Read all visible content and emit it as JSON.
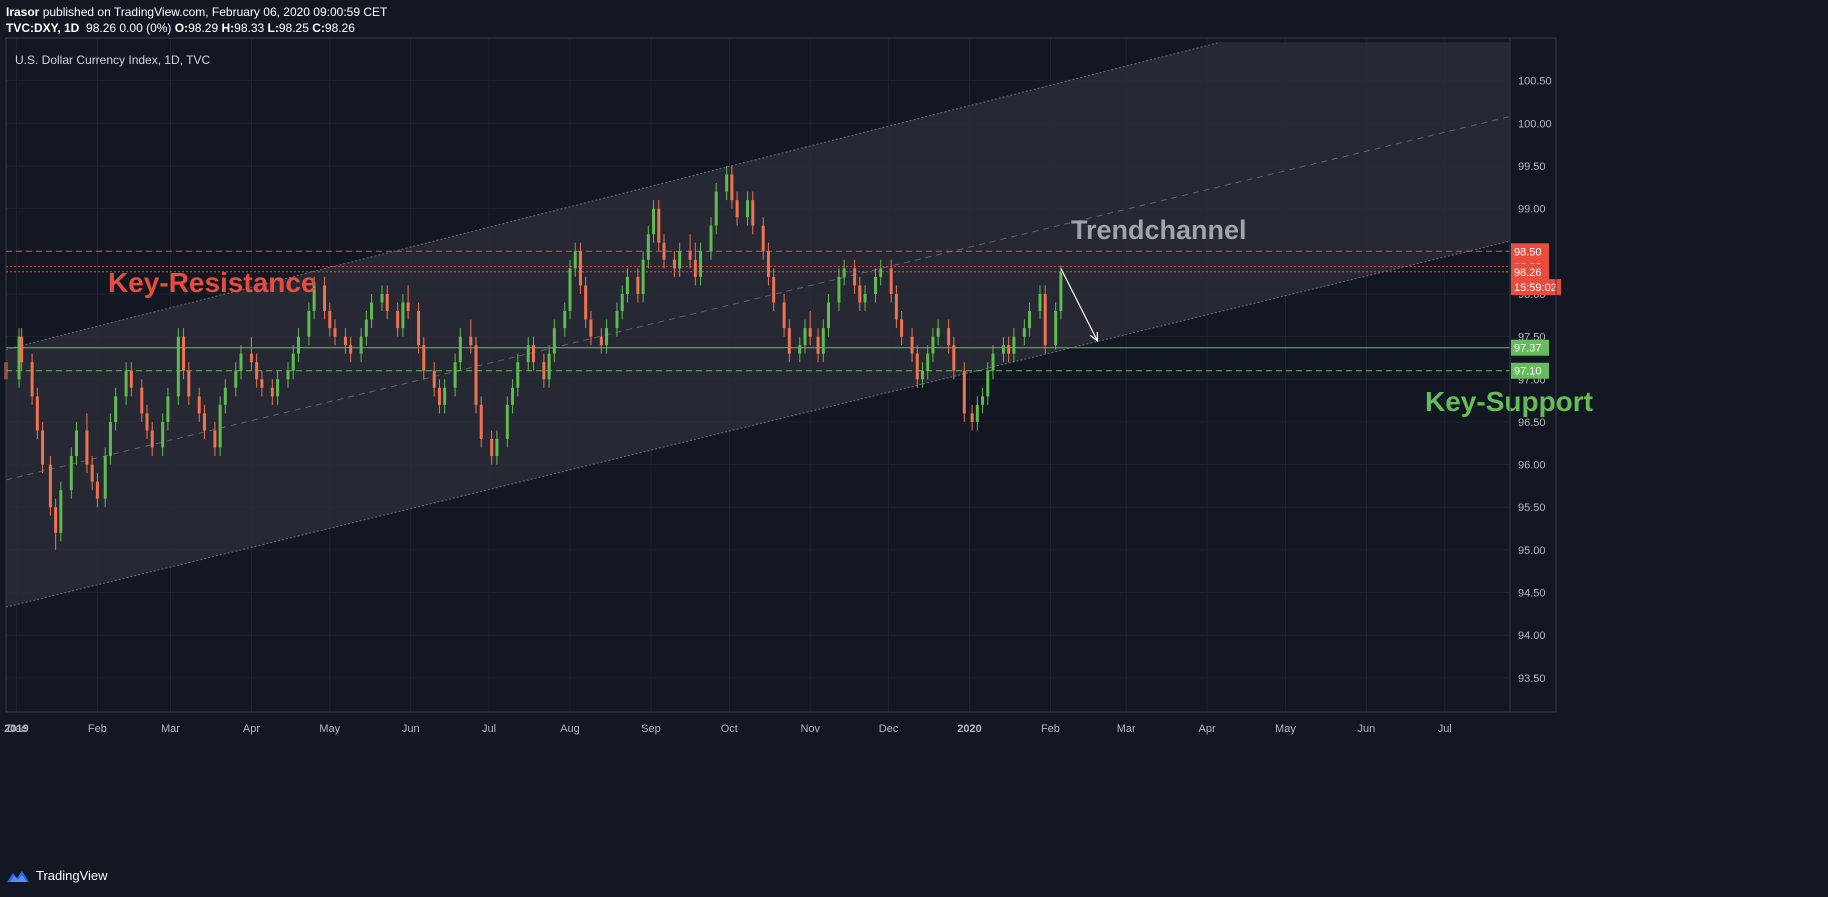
{
  "header": {
    "user": "Irasor",
    "published_text": " published on TradingView.com, February 06, 2020 09:00:59 CET",
    "symbol": "TVC:DXY, 1D",
    "price_info": "98.26 0.00 (0%)",
    "o_label": "O:",
    "o_value": "98.29",
    "h_label": "H:",
    "h_value": "98.33",
    "l_label": "L:",
    "l_value": "98.25",
    "c_label": "C:",
    "c_value": "98.26"
  },
  "footer": {
    "brand": "TradingView"
  },
  "colors": {
    "background": "#131722",
    "up": "#5fbb4e",
    "down": "#ef7350",
    "resistance": "#e84c3d",
    "support": "#66bb5a",
    "channel_fill": "#2a2d36",
    "text": "#d1d4dc"
  },
  "chart_data": {
    "type": "candlestick",
    "title": "U.S. Dollar Currency Index, 1D, TVC",
    "x_ticks": [
      "Dec",
      "2019",
      "Feb",
      "Mar",
      "Apr",
      "May",
      "Jun",
      "Jul",
      "Aug",
      "Sep",
      "Oct",
      "Nov",
      "Dec",
      "2020",
      "Feb",
      "Mar",
      "Apr",
      "May",
      "Jun",
      "Jul"
    ],
    "y_ticks": [
      "93.50",
      "94.00",
      "94.50",
      "95.00",
      "95.50",
      "96.00",
      "96.50",
      "97.00",
      "97.50",
      "98.00",
      "98.50",
      "99.00",
      "99.50",
      "100.00",
      "100.50"
    ],
    "ylim": [
      93.1,
      101.0
    ],
    "xlim": [
      "2018-12-28",
      "2020-07-26"
    ],
    "price_tags": [
      {
        "label": "98.50",
        "value": 98.5,
        "color": "#e84c3d"
      },
      {
        "label": "98.32",
        "value": 98.32,
        "color": "#e84c3d"
      },
      {
        "label": "98.26",
        "value": 98.26,
        "color": "#e84c3d"
      },
      {
        "label": "15:59:02",
        "value": 98.08,
        "color": "#e84c3d"
      },
      {
        "label": "97.37",
        "value": 97.37,
        "color": "#66bb5a"
      },
      {
        "label": "97.10",
        "value": 97.1,
        "color": "#66bb5a"
      }
    ],
    "annotations": [
      {
        "text": "Key-Resistance",
        "color": "#e84c3d"
      },
      {
        "text": "Trendchannel",
        "color": "#a0a3ab"
      },
      {
        "text": "Key-Support",
        "color": "#66bb5a"
      }
    ],
    "hlines": [
      {
        "value": 98.5,
        "style": "dashed",
        "color": "#e84c3d"
      },
      {
        "value": 98.32,
        "style": "dotted",
        "color": "#e84c3d"
      },
      {
        "value": 98.26,
        "style": "dotted",
        "color": "#e84c3d"
      },
      {
        "value": 97.37,
        "style": "solid",
        "color": "#66bb5a"
      },
      {
        "value": 97.1,
        "style": "dashed",
        "color": "#66bb5a"
      }
    ],
    "channel": {
      "upper": [
        [
          "2018-12-28",
          97.35
        ],
        [
          "2020-04-06",
          100.95
        ]
      ],
      "lower": [
        [
          "2018-12-28",
          94.33
        ],
        [
          "2020-07-26",
          98.62
        ]
      ],
      "median": [
        [
          "2018-12-28",
          95.82
        ],
        [
          "2020-07-26",
          100.08
        ]
      ]
    },
    "arrow": [
      [
        "2020-02-05",
        98.3
      ],
      [
        "2020-02-19",
        97.45
      ]
    ],
    "candles": [
      [
        "2018-12-28",
        97.2,
        97.3,
        96.9,
        97.0
      ],
      [
        "2019-01-02",
        97.0,
        97.6,
        96.9,
        97.5
      ],
      [
        "2019-01-03",
        97.5,
        97.6,
        97.1,
        97.2
      ],
      [
        "2019-01-07",
        97.2,
        97.3,
        96.7,
        96.8
      ],
      [
        "2019-01-09",
        96.8,
        96.9,
        96.3,
        96.4
      ],
      [
        "2019-01-11",
        96.4,
        96.5,
        95.9,
        96.0
      ],
      [
        "2019-01-14",
        96.0,
        96.1,
        95.4,
        95.5
      ],
      [
        "2019-01-16",
        95.5,
        95.6,
        95.0,
        95.2
      ],
      [
        "2019-01-18",
        95.2,
        95.8,
        95.1,
        95.7
      ],
      [
        "2019-01-22",
        95.7,
        96.2,
        95.6,
        96.1
      ],
      [
        "2019-01-24",
        96.1,
        96.5,
        96.0,
        96.4
      ],
      [
        "2019-01-28",
        96.4,
        96.6,
        95.9,
        96.0
      ],
      [
        "2019-01-30",
        96.0,
        96.1,
        95.7,
        95.8
      ],
      [
        "2019-02-01",
        95.8,
        95.9,
        95.5,
        95.6
      ],
      [
        "2019-02-04",
        95.6,
        96.2,
        95.5,
        96.1
      ],
      [
        "2019-02-06",
        96.1,
        96.6,
        96.0,
        96.5
      ],
      [
        "2019-02-08",
        96.5,
        96.9,
        96.4,
        96.8
      ],
      [
        "2019-02-12",
        96.8,
        97.2,
        96.7,
        97.1
      ],
      [
        "2019-02-14",
        97.1,
        97.2,
        96.8,
        96.9
      ],
      [
        "2019-02-18",
        96.9,
        97.0,
        96.5,
        96.6
      ],
      [
        "2019-02-20",
        96.6,
        96.7,
        96.3,
        96.4
      ],
      [
        "2019-02-22",
        96.4,
        96.5,
        96.1,
        96.2
      ],
      [
        "2019-02-26",
        96.2,
        96.6,
        96.1,
        96.5
      ],
      [
        "2019-02-28",
        96.5,
        96.9,
        96.4,
        96.8
      ],
      [
        "2019-03-04",
        96.8,
        97.6,
        96.7,
        97.5
      ],
      [
        "2019-03-06",
        97.5,
        97.6,
        97.0,
        97.1
      ],
      [
        "2019-03-08",
        97.1,
        97.2,
        96.7,
        96.8
      ],
      [
        "2019-03-12",
        96.8,
        96.9,
        96.5,
        96.6
      ],
      [
        "2019-03-14",
        96.6,
        96.7,
        96.3,
        96.4
      ],
      [
        "2019-03-18",
        96.4,
        96.5,
        96.1,
        96.2
      ],
      [
        "2019-03-20",
        96.2,
        96.8,
        96.1,
        96.7
      ],
      [
        "2019-03-22",
        96.7,
        97.0,
        96.6,
        96.9
      ],
      [
        "2019-03-26",
        96.9,
        97.2,
        96.8,
        97.1
      ],
      [
        "2019-03-28",
        97.1,
        97.4,
        97.0,
        97.3
      ],
      [
        "2019-04-01",
        97.3,
        97.5,
        97.1,
        97.2
      ],
      [
        "2019-04-03",
        97.2,
        97.3,
        96.9,
        97.0
      ],
      [
        "2019-04-05",
        97.0,
        97.1,
        96.8,
        96.9
      ],
      [
        "2019-04-09",
        96.9,
        97.0,
        96.7,
        96.8
      ],
      [
        "2019-04-11",
        96.8,
        97.1,
        96.7,
        97.0
      ],
      [
        "2019-04-15",
        97.0,
        97.2,
        96.9,
        97.1
      ],
      [
        "2019-04-17",
        97.1,
        97.4,
        97.0,
        97.3
      ],
      [
        "2019-04-19",
        97.3,
        97.6,
        97.2,
        97.5
      ],
      [
        "2019-04-23",
        97.5,
        97.9,
        97.4,
        97.8
      ],
      [
        "2019-04-25",
        97.8,
        98.2,
        97.7,
        98.1
      ],
      [
        "2019-04-29",
        98.1,
        98.2,
        97.7,
        97.8
      ],
      [
        "2019-05-01",
        97.8,
        97.9,
        97.5,
        97.6
      ],
      [
        "2019-05-03",
        97.6,
        97.7,
        97.4,
        97.5
      ],
      [
        "2019-05-07",
        97.5,
        97.6,
        97.3,
        97.4
      ],
      [
        "2019-05-09",
        97.4,
        97.5,
        97.2,
        97.3
      ],
      [
        "2019-05-13",
        97.3,
        97.6,
        97.2,
        97.5
      ],
      [
        "2019-05-15",
        97.5,
        97.8,
        97.4,
        97.7
      ],
      [
        "2019-05-17",
        97.7,
        98.0,
        97.6,
        97.9
      ],
      [
        "2019-05-21",
        97.9,
        98.1,
        97.8,
        98.0
      ],
      [
        "2019-05-23",
        98.0,
        98.1,
        97.7,
        97.8
      ],
      [
        "2019-05-27",
        97.8,
        97.9,
        97.5,
        97.6
      ],
      [
        "2019-05-29",
        97.6,
        98.0,
        97.5,
        97.9
      ],
      [
        "2019-05-31",
        97.9,
        98.1,
        97.7,
        97.8
      ],
      [
        "2019-06-04",
        97.8,
        97.9,
        97.3,
        97.4
      ],
      [
        "2019-06-06",
        97.4,
        97.5,
        97.0,
        97.1
      ],
      [
        "2019-06-10",
        97.1,
        97.2,
        96.8,
        96.9
      ],
      [
        "2019-06-12",
        96.9,
        97.0,
        96.6,
        96.7
      ],
      [
        "2019-06-14",
        96.7,
        97.0,
        96.6,
        96.9
      ],
      [
        "2019-06-18",
        96.9,
        97.3,
        96.8,
        97.2
      ],
      [
        "2019-06-20",
        97.2,
        97.6,
        97.1,
        97.5
      ],
      [
        "2019-06-24",
        97.5,
        97.7,
        97.3,
        97.4
      ],
      [
        "2019-06-26",
        97.4,
        97.5,
        96.6,
        96.7
      ],
      [
        "2019-06-28",
        96.7,
        96.8,
        96.2,
        96.3
      ],
      [
        "2019-07-02",
        96.3,
        96.4,
        96.0,
        96.1
      ],
      [
        "2019-07-04",
        96.1,
        96.4,
        96.0,
        96.3
      ],
      [
        "2019-07-08",
        96.3,
        96.8,
        96.2,
        96.7
      ],
      [
        "2019-07-10",
        96.7,
        97.0,
        96.6,
        96.9
      ],
      [
        "2019-07-12",
        96.9,
        97.3,
        96.8,
        97.2
      ],
      [
        "2019-07-16",
        97.2,
        97.5,
        97.1,
        97.4
      ],
      [
        "2019-07-18",
        97.4,
        97.5,
        97.1,
        97.2
      ],
      [
        "2019-07-22",
        97.2,
        97.3,
        96.9,
        97.0
      ],
      [
        "2019-07-24",
        97.0,
        97.4,
        96.9,
        97.3
      ],
      [
        "2019-07-26",
        97.3,
        97.7,
        97.2,
        97.6
      ],
      [
        "2019-07-30",
        97.6,
        97.9,
        97.5,
        97.8
      ],
      [
        "2019-08-01",
        97.8,
        98.4,
        97.7,
        98.3
      ],
      [
        "2019-08-03",
        98.3,
        98.6,
        98.2,
        98.5
      ],
      [
        "2019-08-05",
        98.5,
        98.6,
        98.0,
        98.1
      ],
      [
        "2019-08-07",
        98.1,
        98.2,
        97.6,
        97.7
      ],
      [
        "2019-08-09",
        97.7,
        97.8,
        97.4,
        97.5
      ],
      [
        "2019-08-13",
        97.5,
        97.6,
        97.3,
        97.4
      ],
      [
        "2019-08-15",
        97.4,
        97.7,
        97.3,
        97.6
      ],
      [
        "2019-08-19",
        97.6,
        97.9,
        97.5,
        97.8
      ],
      [
        "2019-08-21",
        97.8,
        98.1,
        97.7,
        98.0
      ],
      [
        "2019-08-23",
        98.0,
        98.3,
        97.9,
        98.2
      ],
      [
        "2019-08-27",
        98.2,
        98.3,
        97.9,
        98.0
      ],
      [
        "2019-08-29",
        98.0,
        98.5,
        97.9,
        98.4
      ],
      [
        "2019-08-31",
        98.4,
        98.8,
        98.3,
        98.7
      ],
      [
        "2019-09-02",
        98.7,
        99.1,
        98.6,
        99.0
      ],
      [
        "2019-09-04",
        99.0,
        99.1,
        98.5,
        98.6
      ],
      [
        "2019-09-06",
        98.6,
        98.7,
        98.3,
        98.4
      ],
      [
        "2019-09-10",
        98.4,
        98.5,
        98.2,
        98.3
      ],
      [
        "2019-09-12",
        98.3,
        98.6,
        98.2,
        98.5
      ],
      [
        "2019-09-16",
        98.5,
        98.7,
        98.3,
        98.4
      ],
      [
        "2019-09-18",
        98.4,
        98.6,
        98.1,
        98.2
      ],
      [
        "2019-09-20",
        98.2,
        98.6,
        98.1,
        98.5
      ],
      [
        "2019-09-24",
        98.5,
        98.9,
        98.4,
        98.8
      ],
      [
        "2019-09-26",
        98.8,
        99.3,
        98.7,
        99.2
      ],
      [
        "2019-09-30",
        99.2,
        99.5,
        99.1,
        99.4
      ],
      [
        "2019-10-02",
        99.4,
        99.5,
        99.0,
        99.1
      ],
      [
        "2019-10-04",
        99.1,
        99.2,
        98.8,
        98.9
      ],
      [
        "2019-10-08",
        98.9,
        99.2,
        98.8,
        99.1
      ],
      [
        "2019-10-10",
        99.1,
        99.2,
        98.7,
        98.8
      ],
      [
        "2019-10-14",
        98.8,
        98.9,
        98.4,
        98.5
      ],
      [
        "2019-10-16",
        98.5,
        98.6,
        98.1,
        98.2
      ],
      [
        "2019-10-18",
        98.2,
        98.3,
        97.8,
        97.9
      ],
      [
        "2019-10-22",
        97.9,
        98.0,
        97.5,
        97.6
      ],
      [
        "2019-10-24",
        97.6,
        97.7,
        97.2,
        97.3
      ],
      [
        "2019-10-28",
        97.3,
        97.5,
        97.2,
        97.4
      ],
      [
        "2019-10-30",
        97.4,
        97.7,
        97.3,
        97.6
      ],
      [
        "2019-11-01",
        97.6,
        97.8,
        97.4,
        97.5
      ],
      [
        "2019-11-04",
        97.5,
        97.6,
        97.2,
        97.3
      ],
      [
        "2019-11-06",
        97.3,
        97.7,
        97.2,
        97.6
      ],
      [
        "2019-11-08",
        97.6,
        98.0,
        97.5,
        97.9
      ],
      [
        "2019-11-12",
        97.9,
        98.3,
        97.8,
        98.2
      ],
      [
        "2019-11-14",
        98.2,
        98.4,
        98.1,
        98.3
      ],
      [
        "2019-11-18",
        98.3,
        98.4,
        98.0,
        98.1
      ],
      [
        "2019-11-20",
        98.1,
        98.2,
        97.8,
        97.9
      ],
      [
        "2019-11-22",
        97.9,
        98.1,
        97.8,
        98.0
      ],
      [
        "2019-11-26",
        98.0,
        98.3,
        97.9,
        98.2
      ],
      [
        "2019-11-28",
        98.2,
        98.4,
        98.1,
        98.3
      ],
      [
        "2019-12-02",
        98.3,
        98.4,
        97.9,
        98.0
      ],
      [
        "2019-12-04",
        98.0,
        98.1,
        97.6,
        97.7
      ],
      [
        "2019-12-06",
        97.7,
        97.8,
        97.4,
        97.5
      ],
      [
        "2019-12-10",
        97.5,
        97.6,
        97.2,
        97.3
      ],
      [
        "2019-12-12",
        97.3,
        97.4,
        96.9,
        97.0
      ],
      [
        "2019-12-14",
        97.0,
        97.2,
        96.9,
        97.1
      ],
      [
        "2019-12-16",
        97.1,
        97.4,
        97.0,
        97.3
      ],
      [
        "2019-12-18",
        97.3,
        97.6,
        97.2,
        97.5
      ],
      [
        "2019-12-20",
        97.5,
        97.7,
        97.4,
        97.6
      ],
      [
        "2019-12-24",
        97.6,
        97.7,
        97.3,
        97.4
      ],
      [
        "2019-12-26",
        97.4,
        97.5,
        97.0,
        97.1
      ],
      [
        "2019-12-30",
        97.1,
        97.2,
        96.5,
        96.6
      ],
      [
        "2020-01-02",
        96.6,
        96.7,
        96.4,
        96.5
      ],
      [
        "2020-01-04",
        96.5,
        96.8,
        96.4,
        96.7
      ],
      [
        "2020-01-06",
        96.7,
        96.9,
        96.6,
        96.8
      ],
      [
        "2020-01-08",
        96.8,
        97.2,
        96.7,
        97.1
      ],
      [
        "2020-01-10",
        97.1,
        97.4,
        97.0,
        97.3
      ],
      [
        "2020-01-14",
        97.3,
        97.5,
        97.2,
        97.4
      ],
      [
        "2020-01-16",
        97.4,
        97.5,
        97.2,
        97.3
      ],
      [
        "2020-01-18",
        97.3,
        97.6,
        97.2,
        97.5
      ],
      [
        "2020-01-22",
        97.5,
        97.7,
        97.4,
        97.6
      ],
      [
        "2020-01-24",
        97.6,
        97.9,
        97.5,
        97.8
      ],
      [
        "2020-01-28",
        97.8,
        98.1,
        97.7,
        98.0
      ],
      [
        "2020-01-30",
        98.0,
        98.1,
        97.3,
        97.4
      ],
      [
        "2020-02-03",
        97.4,
        97.9,
        97.35,
        97.8
      ],
      [
        "2020-02-05",
        97.8,
        98.33,
        97.7,
        98.26
      ]
    ]
  }
}
